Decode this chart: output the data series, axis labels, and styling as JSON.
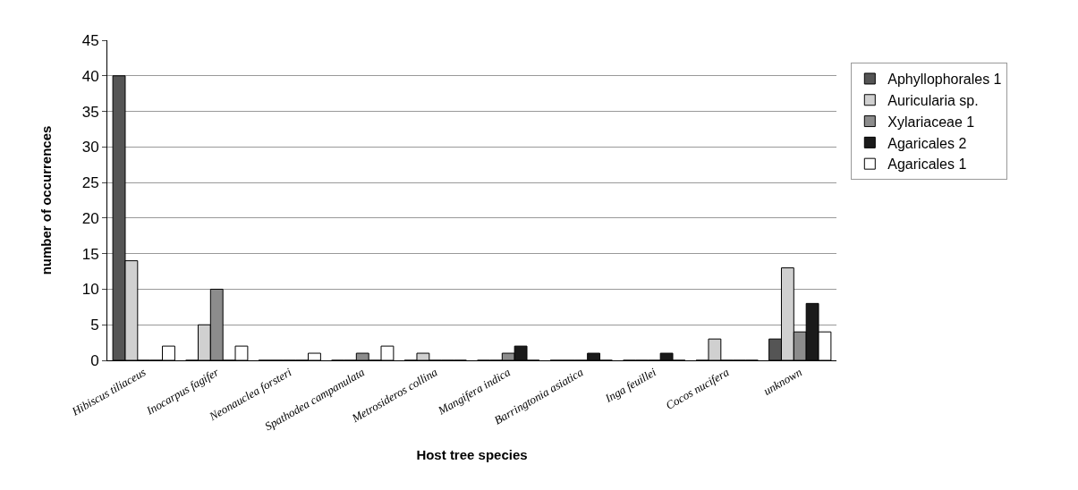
{
  "chart_data": {
    "type": "bar",
    "xlabel": "Host tree species",
    "ylabel": "number of occurrences",
    "categories": [
      "Hibiscus tiliaceus",
      "Inocarpus fagifer",
      "Neonauclea forsteri",
      "Spathodea campanulata",
      "Metrosideros collina",
      "Mangifera indica",
      "Barringtonia asiatica",
      "Inga feuillei",
      "Cocos nucifera",
      "unknown"
    ],
    "series": [
      {
        "name": "Aphyllophorales 1",
        "color": "#555555",
        "values": [
          40,
          0,
          0,
          0,
          0,
          0,
          0,
          0,
          0,
          3
        ]
      },
      {
        "name": "Auricularia sp.",
        "color": "#d0d0d0",
        "values": [
          14,
          5,
          0,
          0,
          1,
          0,
          0,
          0,
          3,
          13
        ]
      },
      {
        "name": "Xylariaceae 1",
        "color": "#8c8c8c",
        "values": [
          0,
          10,
          0,
          1,
          0,
          1,
          0,
          0,
          0,
          4
        ]
      },
      {
        "name": "Agaricales 2",
        "color": "#1a1a1a",
        "values": [
          0,
          0,
          0,
          0,
          0,
          2,
          1,
          1,
          0,
          8
        ]
      },
      {
        "name": "Agaricales 1",
        "color": "#ffffff",
        "values": [
          2,
          2,
          1,
          2,
          0,
          0,
          0,
          0,
          0,
          4
        ]
      }
    ],
    "ylim": [
      0,
      45
    ],
    "yticks": [
      0,
      5,
      10,
      15,
      20,
      25,
      30,
      35,
      40,
      45
    ],
    "grid": "y",
    "legend": "right"
  }
}
